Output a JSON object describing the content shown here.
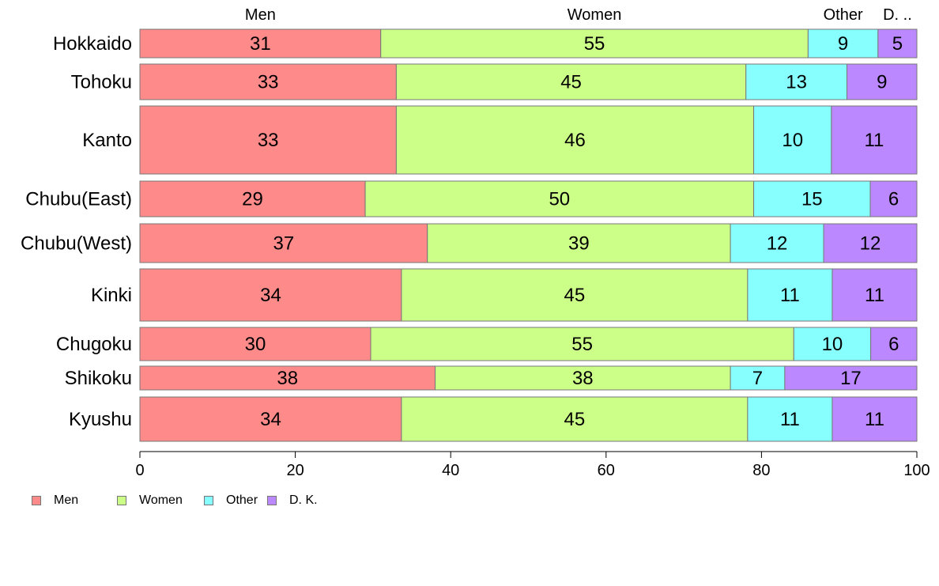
{
  "chart_data": {
    "type": "bar",
    "orientation": "horizontal",
    "stacked": true,
    "categories": [
      "Hokkaido",
      "Tohoku",
      "Kanto",
      "Chubu(East)",
      "Chubu(West)",
      "Kinki",
      "Chugoku",
      "Shikoku",
      "Kyushu"
    ],
    "series": [
      {
        "name": "Men",
        "color": "#ff8a8a",
        "values": [
          31,
          33,
          33,
          29,
          37,
          34,
          30,
          38,
          34
        ]
      },
      {
        "name": "Women",
        "color": "#ccff88",
        "values": [
          55,
          45,
          46,
          50,
          39,
          45,
          55,
          38,
          45
        ]
      },
      {
        "name": "Other",
        "color": "#88ffff",
        "values": [
          9,
          13,
          10,
          15,
          12,
          11,
          10,
          7,
          11
        ]
      },
      {
        "name": "D. K.",
        "color": "#bb88ff",
        "values": [
          5,
          9,
          11,
          6,
          12,
          11,
          6,
          17,
          11
        ]
      }
    ],
    "top_labels": [
      "Men",
      "Women",
      "Other",
      "D. .."
    ],
    "xlim": [
      0,
      100
    ],
    "xticks": [
      0,
      20,
      40,
      60,
      80,
      100
    ],
    "grid": false,
    "legend_position": "bottom-left"
  }
}
